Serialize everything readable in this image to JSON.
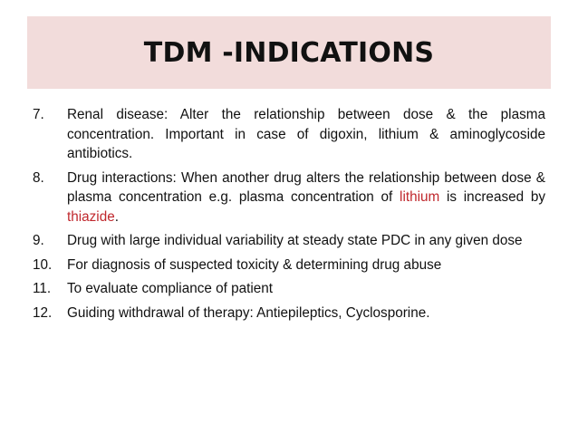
{
  "slide": {
    "title": "TDM -INDICATIONS",
    "highlight_color": "#c0282d",
    "title_background": "#f2dcdb",
    "items": [
      {
        "num": "7.",
        "text": "Renal disease: Alter the relationship between dose & the plasma concentration. Important in case of digoxin, lithium & aminoglycoside antibiotics."
      },
      {
        "num": "8.",
        "pre": "Drug interactions: When another drug alters the relationship between dose & plasma concentration e.g. plasma concentration of ",
        "hl1": "lithium",
        "mid": " is increased by ",
        "hl2": "thiazide",
        "post": "."
      },
      {
        "num": "9.",
        "text": "Drug with large individual variability at steady state PDC in any given dose"
      },
      {
        "num": "10.",
        "text": "For diagnosis of suspected toxicity & determining drug abuse"
      },
      {
        "num": "11.",
        "text": "To evaluate compliance of patient"
      },
      {
        "num": "12.",
        "text": "Guiding withdrawal of therapy: Antiepileptics, Cyclosporine."
      }
    ]
  }
}
